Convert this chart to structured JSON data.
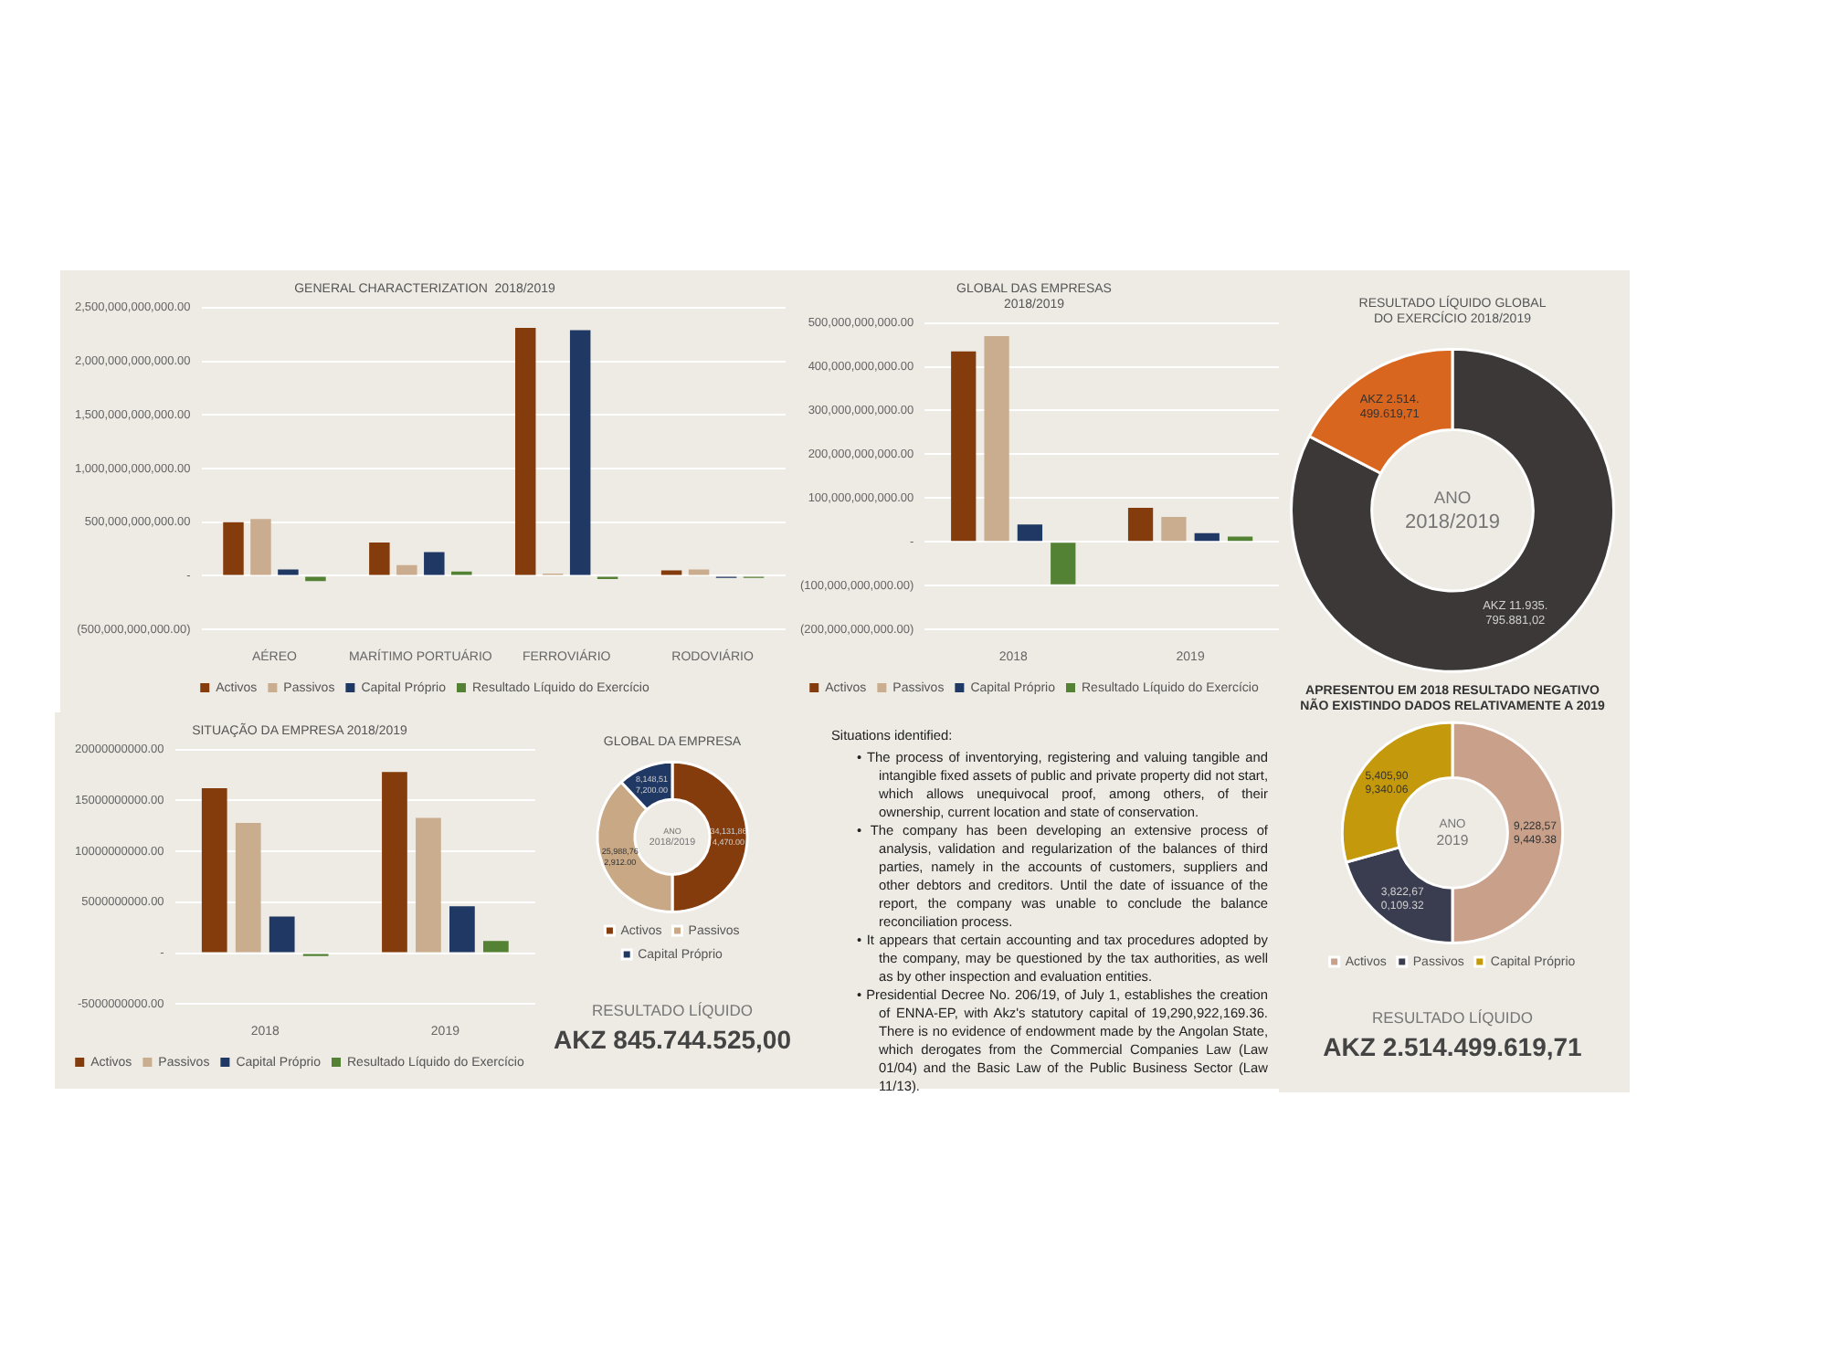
{
  "chart_data": [
    {
      "type": "bar",
      "title": "GENERAL CHARACTERIZATION  2018/2019",
      "categories": [
        "AÉREO",
        "MARÍTIMO PORTUÁRIO",
        "FERROVIÁRIO",
        "RODOVIÁRIO"
      ],
      "series": [
        {
          "name": "Activos",
          "color": "#843c0c",
          "values": [
            500000000000,
            310000000000,
            2310000000000,
            50000000000
          ]
        },
        {
          "name": "Passivos",
          "color": "#c9ad8e",
          "values": [
            530000000000,
            100000000000,
            20000000000,
            60000000000
          ]
        },
        {
          "name": "Capital Próprio",
          "color": "#1f3864",
          "values": [
            60000000000,
            220000000000,
            2290000000000,
            -20000000000
          ]
        },
        {
          "name": "Resultado Líquido do Exercício",
          "color": "#548235",
          "values": [
            -50000000000,
            40000000000,
            -30000000000,
            -20000000000
          ]
        }
      ],
      "ylim": [
        -500000000000,
        2500000000000
      ],
      "yticks": [
        {
          "value": -500000000000,
          "label": "(500,000,000,000.00)"
        },
        {
          "value": 0,
          "label": "-"
        },
        {
          "value": 500000000000,
          "label": "500,000,000,000.00"
        },
        {
          "value": 1000000000000,
          "label": "1,000,000,000,000.00"
        },
        {
          "value": 1500000000000,
          "label": "1,500,000,000,000.00"
        },
        {
          "value": 2000000000000,
          "label": "2,000,000,000,000.00"
        },
        {
          "value": 2500000000000,
          "label": "2,500,000,000,000.00"
        }
      ],
      "grid": "y",
      "legend": "bottom"
    },
    {
      "type": "bar",
      "title": "GLOBAL DAS EMPRESAS\n2018/2019",
      "categories": [
        "2018",
        "2019"
      ],
      "series": [
        {
          "name": "Activos",
          "color": "#843c0c",
          "values": [
            435000000000,
            78000000000
          ]
        },
        {
          "name": "Passivos",
          "color": "#c9ad8e",
          "values": [
            470000000000,
            57000000000
          ]
        },
        {
          "name": "Capital Próprio",
          "color": "#1f3864",
          "values": [
            40000000000,
            20000000000
          ]
        },
        {
          "name": "Resultado Líquido do Exercício",
          "color": "#548235",
          "values": [
            -97000000000,
            12000000000
          ]
        }
      ],
      "ylim": [
        -200000000000,
        500000000000
      ],
      "yticks": [
        {
          "value": -200000000000,
          "label": "(200,000,000,000.00)"
        },
        {
          "value": -100000000000,
          "label": "(100,000,000,000.00)"
        },
        {
          "value": 0,
          "label": "-"
        },
        {
          "value": 100000000000,
          "label": "100,000,000,000.00"
        },
        {
          "value": 200000000000,
          "label": "200,000,000,000.00"
        },
        {
          "value": 300000000000,
          "label": "300,000,000,000.00"
        },
        {
          "value": 400000000000,
          "label": "400,000,000,000.00"
        },
        {
          "value": 500000000000,
          "label": "500,000,000,000.00"
        }
      ],
      "grid": "y",
      "legend": "bottom"
    },
    {
      "type": "donut",
      "title": "RESULTADO LÍQUIDO GLOBAL\nDO EXERCÍCIO 2018/2019",
      "categories": [
        null,
        null
      ],
      "values": [
        11935795881.02,
        2514499619.71
      ],
      "colors": [
        "#3b3837",
        "#d9661f"
      ],
      "value_labels": [
        "AKZ 11.935.795.881,02",
        "AKZ 2.514.499.619,71"
      ],
      "annotations": [
        "ANO\n2018/2019"
      ]
    },
    {
      "type": "bar",
      "title": "SITUAÇÃO DA EMPRESA 2018/2019",
      "categories": [
        "2018",
        "2019"
      ],
      "series": [
        {
          "name": "Activos",
          "color": "#843c0c",
          "values": [
            16200000000,
            17800000000
          ]
        },
        {
          "name": "Passivos",
          "color": "#c9ad8e",
          "values": [
            12800000000,
            13300000000
          ]
        },
        {
          "name": "Capital Próprio",
          "color": "#1f3864",
          "values": [
            3600000000,
            4600000000
          ]
        },
        {
          "name": "Resultado Líquido do Exercício",
          "color": "#548235",
          "values": [
            -300000000,
            1200000000
          ]
        }
      ],
      "ylim": [
        -5000000000,
        20000000000
      ],
      "yticks": [
        {
          "value": -5000000000,
          "label": "-5000000000.00"
        },
        {
          "value": 0,
          "label": "-"
        },
        {
          "value": 5000000000,
          "label": "5000000000.00"
        },
        {
          "value": 10000000000,
          "label": "10000000000.00"
        },
        {
          "value": 15000000000,
          "label": "15000000000.00"
        },
        {
          "value": 20000000000,
          "label": "20000000000.00"
        }
      ],
      "grid": "y",
      "legend": "bottom"
    },
    {
      "type": "donut",
      "title": "GLOBAL DA EMPRESA",
      "categories": [
        "Activos",
        "Passivos",
        "Capital Próprio"
      ],
      "values": [
        34131864470,
        25988762912,
        8148517200
      ],
      "colors": [
        "#843c0c",
        "#c9a886",
        "#1f3864"
      ],
      "value_labels": [
        "34,131,864,470.00",
        "25,988,762,912.00",
        "8,148,517,200.00"
      ],
      "legend": "bottom",
      "annotations": [
        "ANO\n2018/2019",
        "RESULTADO LÍQUIDO",
        "AKZ 845.744.525,00"
      ]
    },
    {
      "type": "other",
      "title": "Situations identified:",
      "annotations": [
        "• The process of inventorying, registering and valuing tangible and intangible fixed assets of public and private property did not start, which allows unequivocal proof, among others, of their ownership, current location and state of conservation.",
        "• The company has been developing an extensive process of analysis, validation and regularization of the balances of third parties, namely in the accounts of customers, suppliers and other debtors and creditors. Until the date of issuance of the report, the company was unable to conclude the balance reconciliation process.",
        "• It appears that certain accounting and tax procedures adopted by the company, may be questioned by the tax authorities, as well as by other inspection and evaluation entities.",
        "• Presidential Decree No. 206/19, of July 1, establishes the creation of ENNA-EP, with Akz's statutory capital of 19,290,922,169.36. There is no evidence of endowment made by the Angolan State, which derogates from the Commercial Companies Law (Law 01/04) and the Basic Law of the Public Business Sector (Law 11/13)."
      ]
    },
    {
      "type": "donut",
      "subtitle": "APRESENTOU EM 2018 RESULTADO NEGATIVO\nNÃO EXISTINDO DADOS RELATIVAMENTE A 2019",
      "categories": [
        "Activos",
        "Passivos",
        "Capital Próprio"
      ],
      "values": [
        9228579449.38,
        3822670109.32,
        5405909340.06
      ],
      "colors": [
        "#c9a08a",
        "#3a3d4f",
        "#c49a0c"
      ],
      "value_labels": [
        "9,228,579,449.38",
        "3,822,670,109.32",
        "5,405,909,340.06"
      ],
      "legend": "bottom",
      "annotations": [
        "ANO\n2019",
        "RESULTADO LÍQUIDO",
        "AKZ 2.514.499.619,71"
      ]
    }
  ]
}
